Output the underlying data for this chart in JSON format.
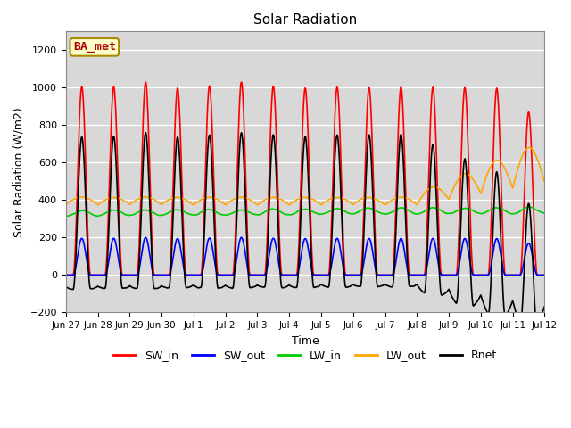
{
  "title": "Solar Radiation",
  "xlabel": "Time",
  "ylabel": "Solar Radiation (W/m2)",
  "ylim": [
    -200,
    1300
  ],
  "yticks": [
    -200,
    0,
    200,
    400,
    600,
    800,
    1000,
    1200
  ],
  "x_labels": [
    "Jun 27",
    "Jun 28",
    "Jun 29",
    "Jun 30",
    "Jul 1",
    "Jul 2",
    "Jul 3",
    "Jul 4",
    "Jul 5",
    "Jul 6",
    "Jul 7",
    "Jul 8",
    "Jul 9",
    "Jul 10",
    "Jul 11",
    "Jul 12"
  ],
  "series": {
    "SW_in": {
      "color": "#ff0000",
      "lw": 1.2
    },
    "SW_out": {
      "color": "#0000ff",
      "lw": 1.2
    },
    "LW_in": {
      "color": "#00cc00",
      "lw": 1.2
    },
    "LW_out": {
      "color": "#ffa500",
      "lw": 1.2
    },
    "Rnet": {
      "color": "#000000",
      "lw": 1.2
    }
  },
  "annotation_text": "BA_met",
  "annotation_bg": "#ffffcc",
  "annotation_border": "#aa8800",
  "annotation_text_color": "#aa0000",
  "plot_bg": "#d8d8d8",
  "fig_bg": "#ffffff"
}
